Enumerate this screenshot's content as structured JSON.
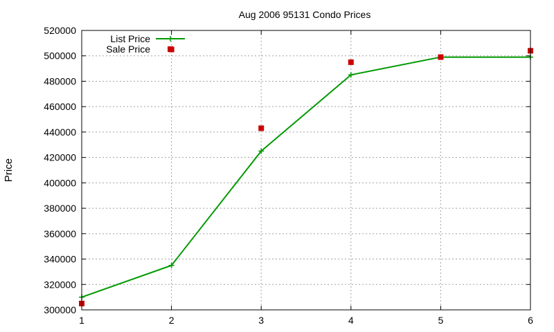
{
  "chart_data": {
    "type": "line",
    "title": "Aug 2006 95131 Condo Prices",
    "xlabel": "",
    "ylabel": "Price",
    "x": [
      1,
      2,
      3,
      4,
      5,
      6
    ],
    "xlim": [
      1,
      6
    ],
    "ylim": [
      300000,
      520000
    ],
    "xticks": [
      "1",
      "2",
      "3",
      "4",
      "5",
      "6"
    ],
    "yticks": [
      "300000",
      "320000",
      "340000",
      "360000",
      "380000",
      "400000",
      "420000",
      "440000",
      "460000",
      "480000",
      "500000",
      "520000"
    ],
    "grid": true,
    "legend_position": "top-left",
    "series": [
      {
        "name": "List Price",
        "style": "linespoints",
        "marker": "plus",
        "color": "#009900",
        "values": [
          310000,
          335000,
          425000,
          485000,
          499000,
          499000
        ]
      },
      {
        "name": "Sale Price",
        "style": "points",
        "marker": "square",
        "color": "#cc0000",
        "values": [
          305000,
          505000,
          443000,
          495000,
          499000,
          504000
        ]
      }
    ]
  }
}
